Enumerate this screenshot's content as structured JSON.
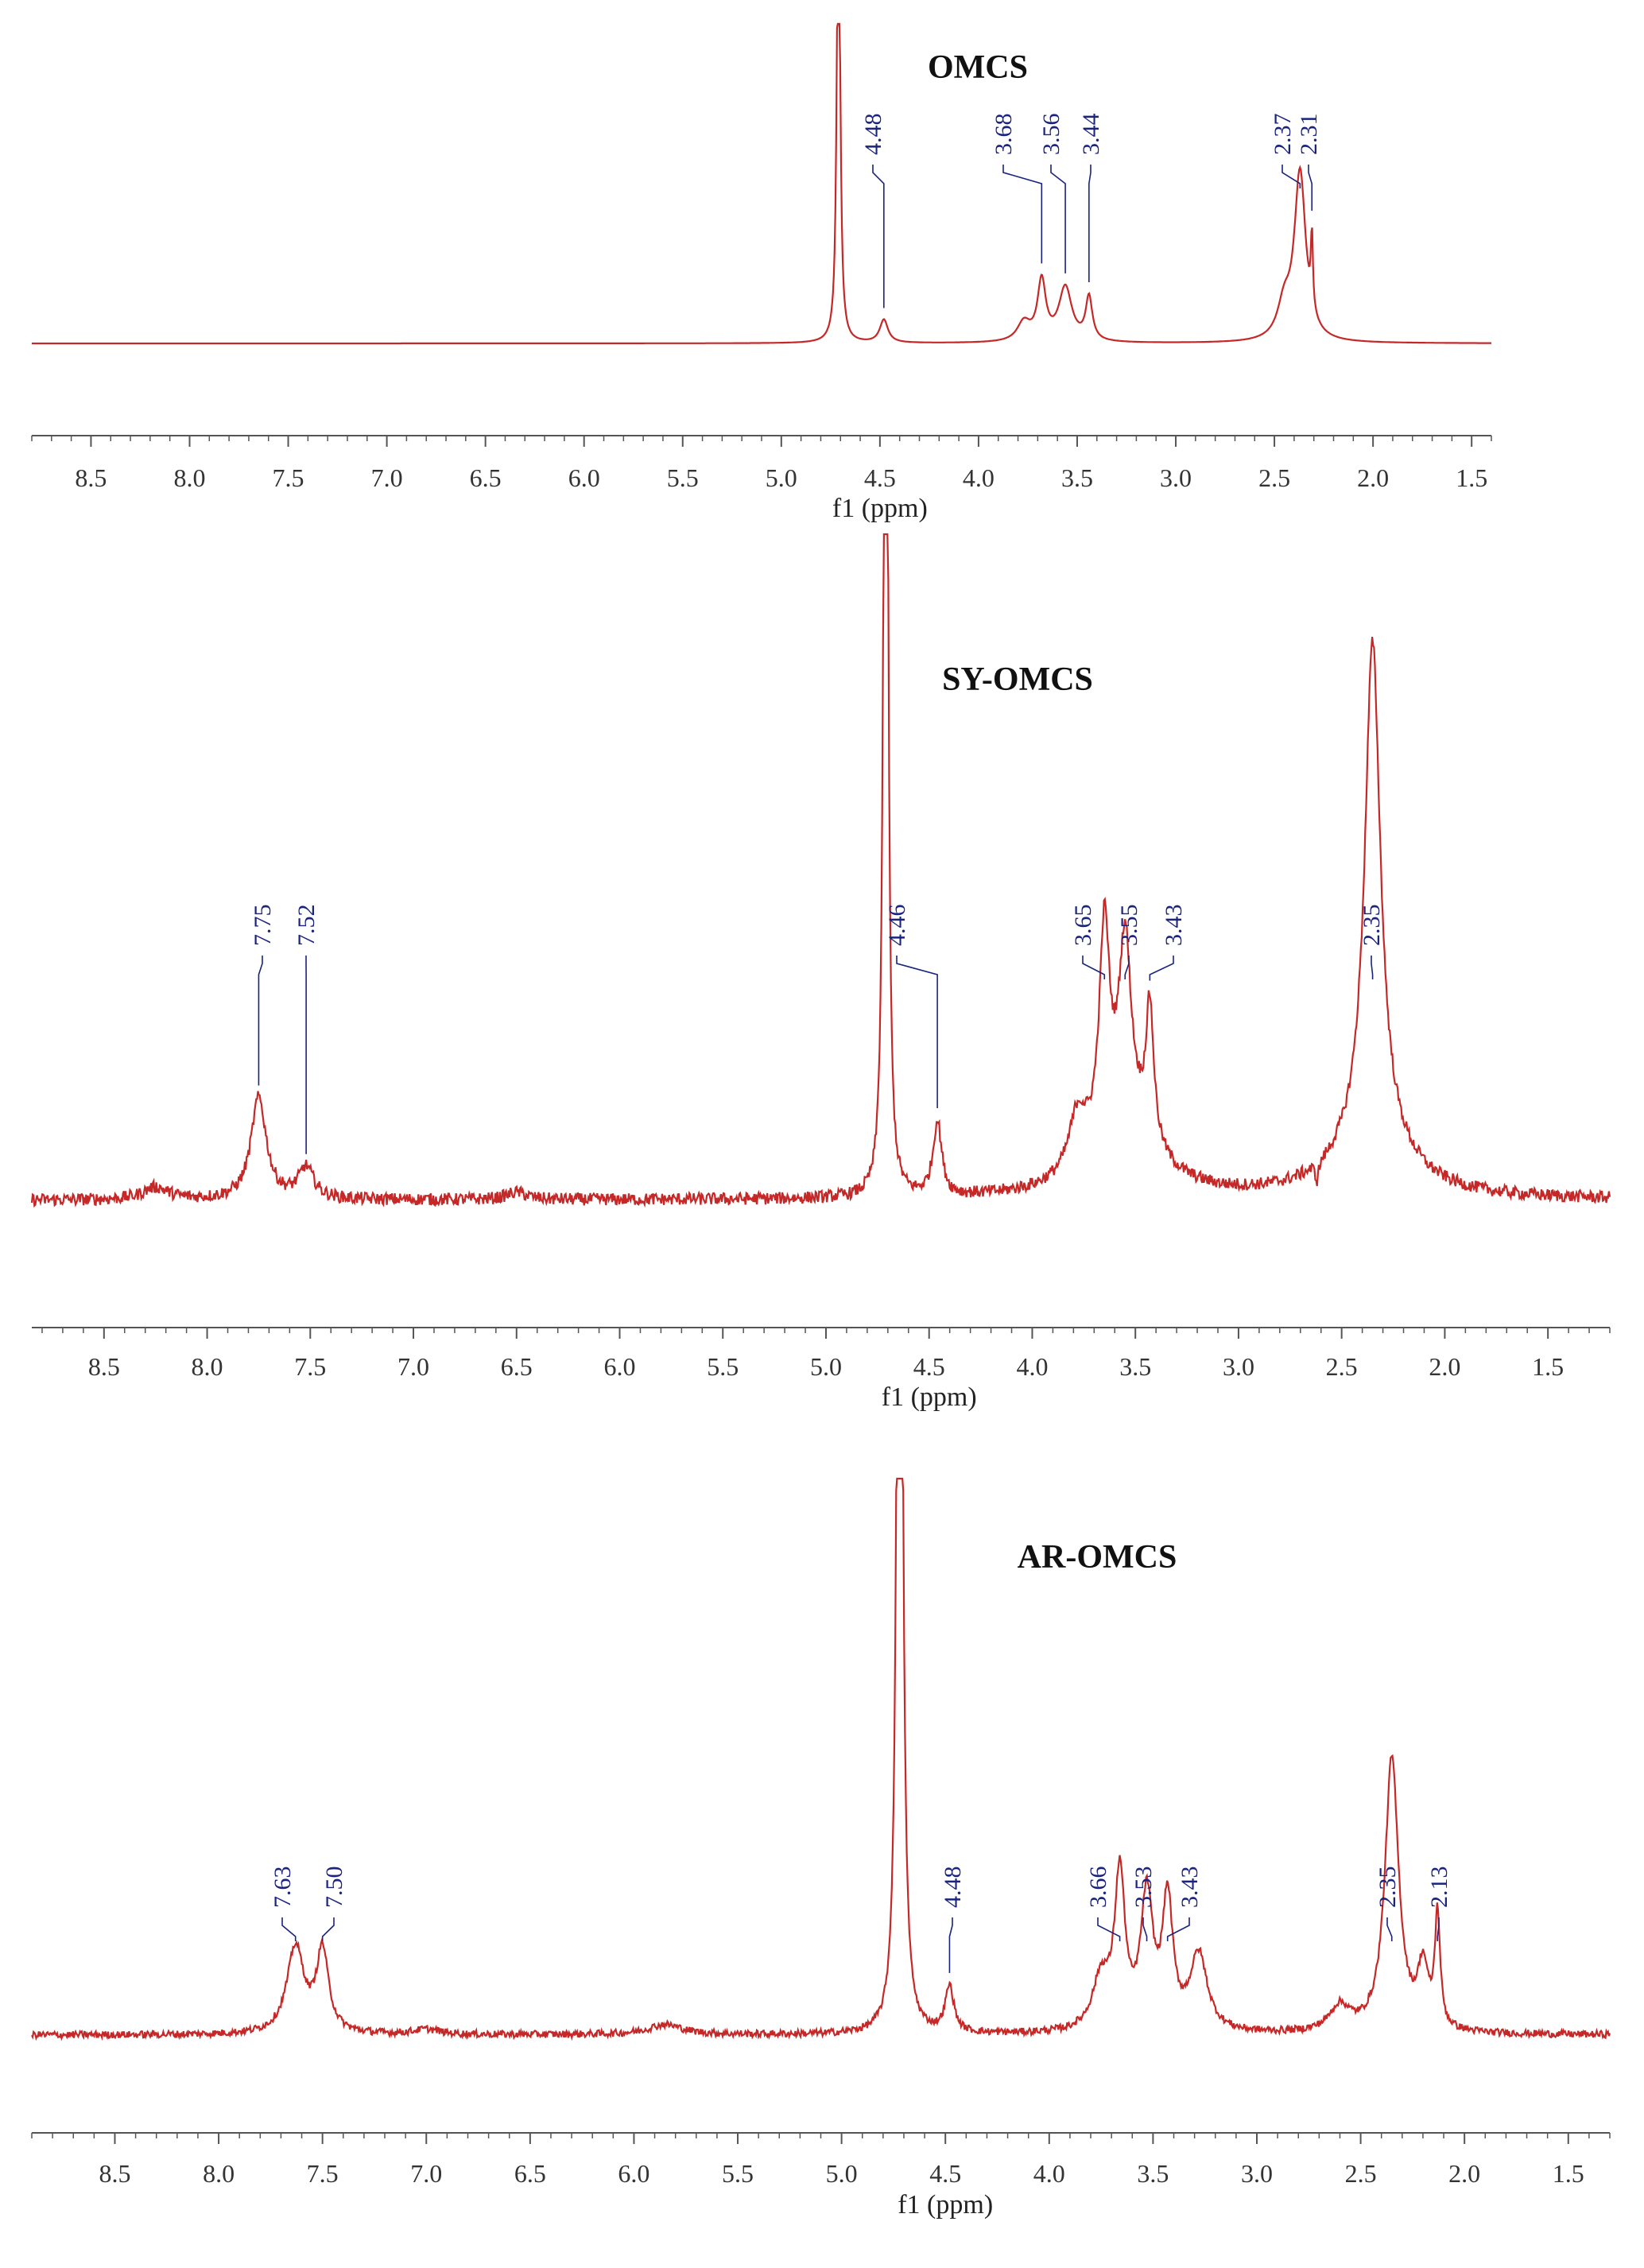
{
  "colors": {
    "trace": "#c62828",
    "axis": "#555555",
    "peak_label": "#1a237e"
  },
  "chart_data": [
    {
      "type": "line",
      "title": "OMCS",
      "xlabel": "f1 (ppm)",
      "x_reversed": true,
      "xlim": [
        8.8,
        1.4
      ],
      "ylim": [
        -0.05,
        1.0
      ],
      "tick_values": [
        8.5,
        8.0,
        7.5,
        7.0,
        6.5,
        6.0,
        5.5,
        5.0,
        4.5,
        4.0,
        3.5,
        3.0,
        2.5,
        2.0,
        1.5
      ],
      "tick_labels": [
        "8.5",
        "8.0",
        "7.5",
        "7.0",
        "6.5",
        "6.0",
        "5.5",
        "5.0",
        "4.5",
        "4.0",
        "3.5",
        "3.0",
        "2.5",
        "2.0",
        "1.5"
      ],
      "baseline_noise": 0.0,
      "peaks": [
        {
          "ppm": 4.71,
          "height": 2.0,
          "width": 0.018
        },
        {
          "ppm": 4.48,
          "height": 0.085,
          "width": 0.05
        },
        {
          "ppm": 3.77,
          "height": 0.07,
          "width": 0.08
        },
        {
          "ppm": 3.68,
          "height": 0.22,
          "width": 0.05
        },
        {
          "ppm": 3.56,
          "height": 0.2,
          "width": 0.08
        },
        {
          "ppm": 3.44,
          "height": 0.16,
          "width": 0.04
        },
        {
          "ppm": 2.45,
          "height": 0.12,
          "width": 0.08
        },
        {
          "ppm": 2.37,
          "height": 0.62,
          "width": 0.07
        },
        {
          "ppm": 2.31,
          "height": 0.28,
          "width": 0.012
        }
      ],
      "peak_labels": [
        "4.48",
        "3.68",
        "3.56",
        "3.44",
        "2.37",
        "2.31"
      ]
    },
    {
      "type": "line",
      "title": "SY-OMCS",
      "xlabel": "f1 (ppm)",
      "x_reversed": true,
      "xlim": [
        8.85,
        1.2
      ],
      "ylim": [
        -0.1,
        1.0
      ],
      "tick_values": [
        8.5,
        8.0,
        7.5,
        7.0,
        6.5,
        6.0,
        5.5,
        5.0,
        4.5,
        4.0,
        3.5,
        3.0,
        2.5,
        2.0,
        1.5
      ],
      "tick_labels": [
        "8.5",
        "8.0",
        "7.5",
        "7.0",
        "6.5",
        "6.0",
        "5.5",
        "5.0",
        "4.5",
        "4.0",
        "3.5",
        "3.0",
        "2.5",
        "2.0",
        "1.5"
      ],
      "baseline_noise": 0.01,
      "peaks": [
        {
          "ppm": 8.25,
          "height": 0.02,
          "width": 0.15
        },
        {
          "ppm": 7.75,
          "height": 0.165,
          "width": 0.09
        },
        {
          "ppm": 7.52,
          "height": 0.05,
          "width": 0.09
        },
        {
          "ppm": 6.5,
          "height": 0.012,
          "width": 0.12
        },
        {
          "ppm": 4.71,
          "height": 2.5,
          "width": 0.02
        },
        {
          "ppm": 4.46,
          "height": 0.12,
          "width": 0.05
        },
        {
          "ppm": 3.78,
          "height": 0.09,
          "width": 0.1
        },
        {
          "ppm": 3.65,
          "height": 0.34,
          "width": 0.06
        },
        {
          "ppm": 3.55,
          "height": 0.29,
          "width": 0.07
        },
        {
          "ppm": 3.43,
          "height": 0.22,
          "width": 0.045
        },
        {
          "ppm": 3.55,
          "height": 0.12,
          "width": 0.35
        },
        {
          "ppm": 2.35,
          "height": 0.8,
          "width": 0.09
        },
        {
          "ppm": 2.35,
          "height": 0.1,
          "width": 0.4
        },
        {
          "ppm": 2.62,
          "height": -0.03,
          "width": 0.02
        }
      ],
      "peak_labels": [
        "7.75",
        "7.52",
        "4.46",
        "3.65",
        "3.55",
        "3.43",
        "2.35"
      ]
    },
    {
      "type": "line",
      "title": "AR-OMCS",
      "xlabel": "f1 (ppm)",
      "x_reversed": true,
      "xlim": [
        8.9,
        1.3
      ],
      "ylim": [
        -0.05,
        1.0
      ],
      "tick_values": [
        8.5,
        8.0,
        7.5,
        7.0,
        6.5,
        6.0,
        5.5,
        5.0,
        4.5,
        4.0,
        3.5,
        3.0,
        2.5,
        2.0,
        1.5
      ],
      "tick_labels": [
        "8.5",
        "8.0",
        "7.5",
        "7.0",
        "6.5",
        "6.0",
        "5.5",
        "5.0",
        "4.5",
        "4.0",
        "3.5",
        "3.0",
        "2.5",
        "2.0",
        "1.5"
      ],
      "baseline_noise": 0.007,
      "peaks": [
        {
          "ppm": 7.63,
          "height": 0.17,
          "width": 0.1
        },
        {
          "ppm": 7.5,
          "height": 0.16,
          "width": 0.07
        },
        {
          "ppm": 7.0,
          "height": 0.01,
          "width": 0.15
        },
        {
          "ppm": 5.85,
          "height": 0.02,
          "width": 0.2
        },
        {
          "ppm": 4.72,
          "height": 3.0,
          "width": 0.025
        },
        {
          "ppm": 4.48,
          "height": 0.09,
          "width": 0.05
        },
        {
          "ppm": 3.75,
          "height": 0.1,
          "width": 0.1
        },
        {
          "ppm": 3.66,
          "height": 0.3,
          "width": 0.06
        },
        {
          "ppm": 3.53,
          "height": 0.26,
          "width": 0.07
        },
        {
          "ppm": 3.43,
          "height": 0.25,
          "width": 0.06
        },
        {
          "ppm": 3.28,
          "height": 0.15,
          "width": 0.1
        },
        {
          "ppm": 2.6,
          "height": 0.05,
          "width": 0.12
        },
        {
          "ppm": 2.35,
          "height": 0.54,
          "width": 0.08
        },
        {
          "ppm": 2.2,
          "height": 0.12,
          "width": 0.06
        },
        {
          "ppm": 2.13,
          "height": 0.22,
          "width": 0.03
        }
      ],
      "peak_labels": [
        "7.63",
        "7.50",
        "4.48",
        "3.66",
        "3.53",
        "3.43",
        "2.35",
        "2.13"
      ]
    }
  ]
}
